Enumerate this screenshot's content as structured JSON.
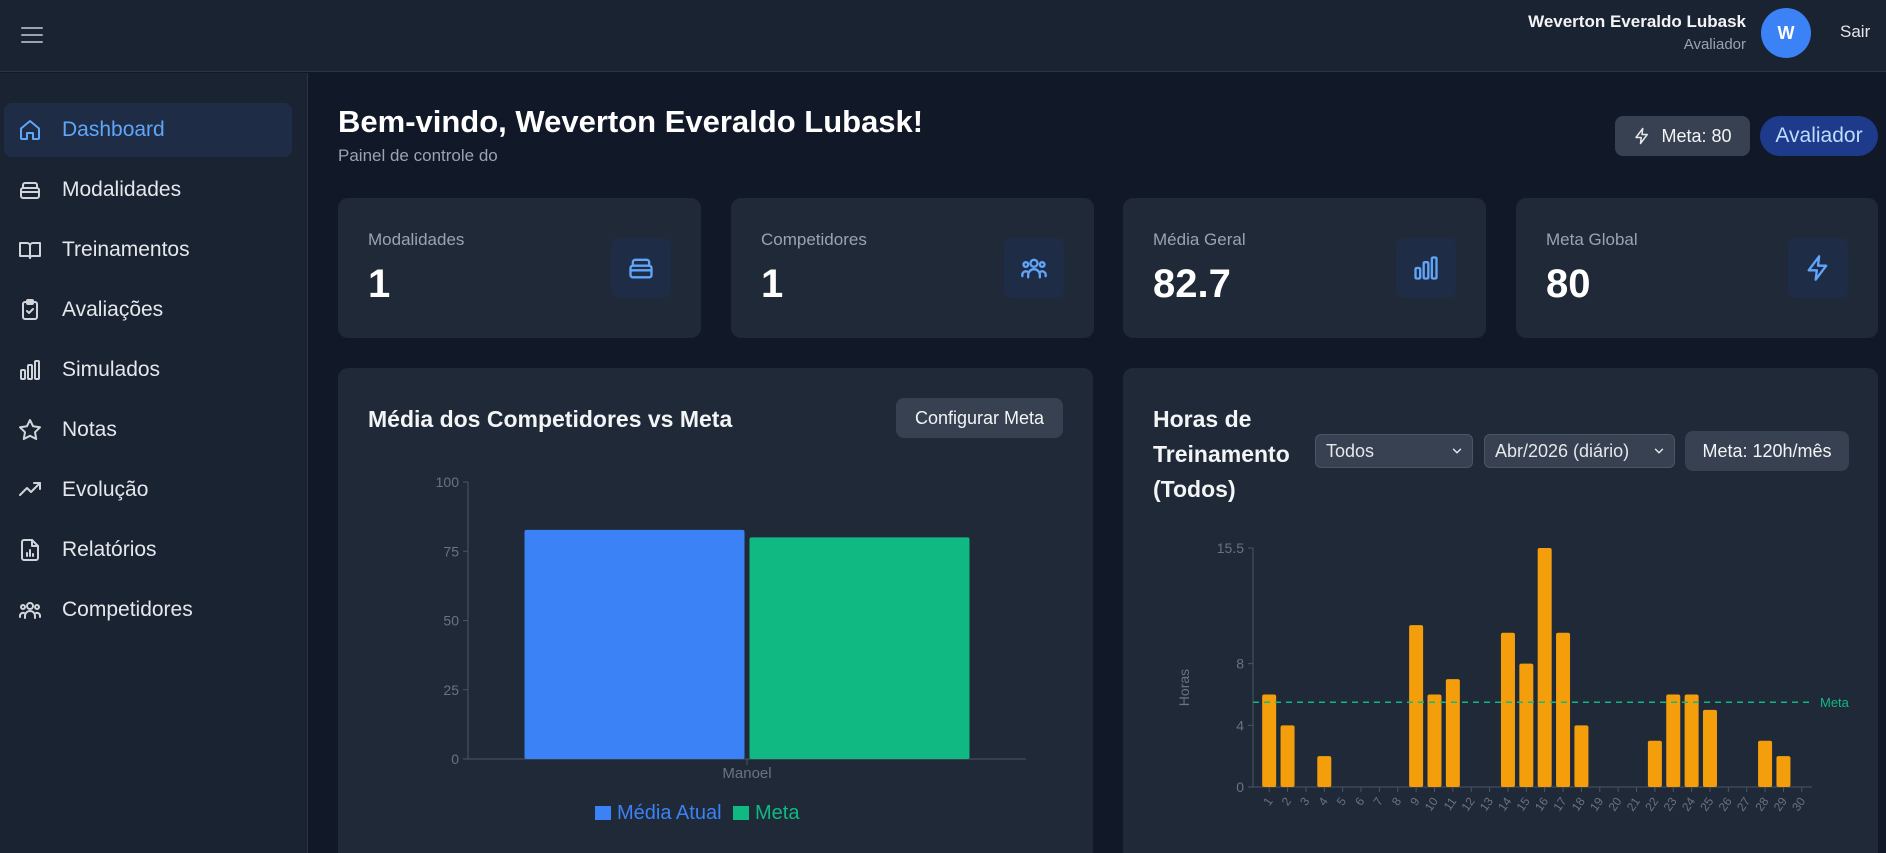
{
  "header": {
    "user_name": "Weverton Everaldo Lubask",
    "user_role": "Avaliador",
    "avatar_initial": "W",
    "logout_label": "Sair"
  },
  "sidebar": {
    "items": [
      {
        "label": "Dashboard",
        "icon": "home-icon",
        "active": true
      },
      {
        "label": "Modalidades",
        "icon": "box-icon"
      },
      {
        "label": "Treinamentos",
        "icon": "book-icon"
      },
      {
        "label": "Avaliações",
        "icon": "clipboard-check-icon"
      },
      {
        "label": "Simulados",
        "icon": "bar-chart-icon"
      },
      {
        "label": "Notas",
        "icon": "star-icon"
      },
      {
        "label": "Evolução",
        "icon": "trending-up-icon"
      },
      {
        "label": "Relatórios",
        "icon": "file-chart-icon"
      },
      {
        "label": "Competidores",
        "icon": "users-icon"
      }
    ]
  },
  "main": {
    "title": "Bem-vindo, Weverton Everaldo Lubask!",
    "subtitle": "Painel de controle do",
    "meta_badge": "Meta: 80",
    "role_badge": "Avaliador"
  },
  "stats": [
    {
      "label": "Modalidades",
      "value": "1",
      "icon": "box-icon"
    },
    {
      "label": "Competidores",
      "value": "1",
      "icon": "users-icon"
    },
    {
      "label": "Média Geral",
      "value": "82.7",
      "icon": "bar-chart-icon"
    },
    {
      "label": "Meta Global",
      "value": "80",
      "icon": "zap-icon"
    }
  ],
  "colors": {
    "accent": "#60a5fa",
    "bar_current": "#3b82f6",
    "bar_meta": "#10b981",
    "bar_hours": "#f59e0b",
    "meta_line": "#10b981"
  },
  "avg_panel": {
    "title": "Média dos Competidores vs Meta",
    "config_button": "Configurar Meta"
  },
  "hours_panel": {
    "title_line1": "Horas de",
    "title_line2": "Treinamento",
    "title_line3": "(Todos)",
    "filter_competitor": "Todos",
    "filter_period": "Abr/2026 (diário)",
    "meta_button": "Meta: 120h/mês"
  },
  "chart_data": [
    {
      "type": "bar",
      "title": "Média dos Competidores vs Meta",
      "categories": [
        "Manoel"
      ],
      "series": [
        {
          "name": "Média Atual",
          "values": [
            82.7
          ]
        },
        {
          "name": "Meta",
          "values": [
            80
          ]
        }
      ],
      "yticks": [
        0,
        25,
        50,
        75,
        100
      ],
      "ylim": [
        0,
        100
      ],
      "legend": "bottom"
    },
    {
      "type": "bar",
      "title": "Horas de Treinamento (Todos)",
      "ylabel": "Horas",
      "x": [
        "1",
        "2",
        "3",
        "4",
        "5",
        "6",
        "7",
        "8",
        "9",
        "10",
        "11",
        "12",
        "13",
        "14",
        "15",
        "16",
        "17",
        "18",
        "19",
        "20",
        "21",
        "22",
        "23",
        "24",
        "25",
        "26",
        "27",
        "28",
        "29",
        "30"
      ],
      "values": [
        6,
        4,
        0,
        2,
        0,
        0,
        0,
        0,
        10.5,
        6,
        7,
        0,
        0,
        10,
        8,
        15.5,
        10,
        4,
        0,
        0,
        0,
        3,
        6,
        6,
        5,
        0,
        0,
        3,
        2,
        0
      ],
      "yticks": [
        0,
        4,
        8,
        15.5
      ],
      "ylim": [
        0,
        15.5
      ],
      "reference_line": {
        "label": "Meta",
        "value": 5.5
      }
    }
  ]
}
